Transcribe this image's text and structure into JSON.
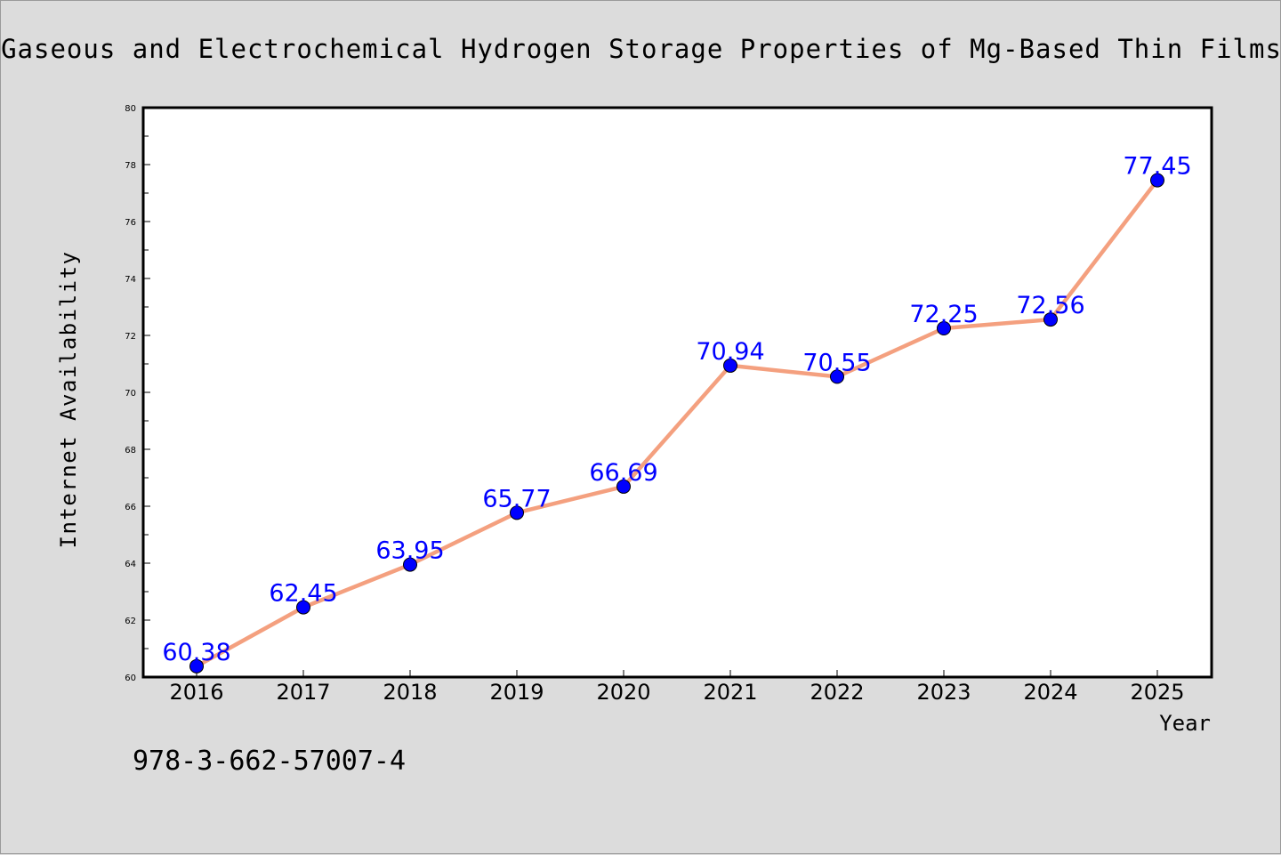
{
  "chart_data": {
    "type": "line",
    "title": "Gaseous and Electrochemical Hydrogen Storage Properties of Mg-Based Thin Films",
    "xlabel": "Year",
    "ylabel": "Internet Availability",
    "categories": [
      "2016",
      "2017",
      "2018",
      "2019",
      "2020",
      "2021",
      "2022",
      "2023",
      "2024",
      "2025"
    ],
    "values": [
      60.38,
      62.45,
      63.95,
      65.77,
      66.69,
      70.94,
      70.55,
      72.25,
      72.56,
      77.45
    ],
    "value_labels": [
      "60.38",
      "62.45",
      "63.95",
      "65.77",
      "66.69",
      "70.94",
      "70.55",
      "72.25",
      "72.56",
      "77.45"
    ],
    "ylim": [
      60,
      80
    ],
    "yticks": [
      "60",
      "62",
      "64",
      "66",
      "68",
      "70",
      "72",
      "74",
      "76",
      "78",
      "80"
    ],
    "grid": false,
    "legend": "none",
    "line_color": "#f4a07f",
    "marker_color": "#0000ff",
    "label_color": "#0000ff",
    "plot_background": "#ffffff",
    "page_background": "#dcdcdc"
  },
  "footnote": "978-3-662-57007-4"
}
